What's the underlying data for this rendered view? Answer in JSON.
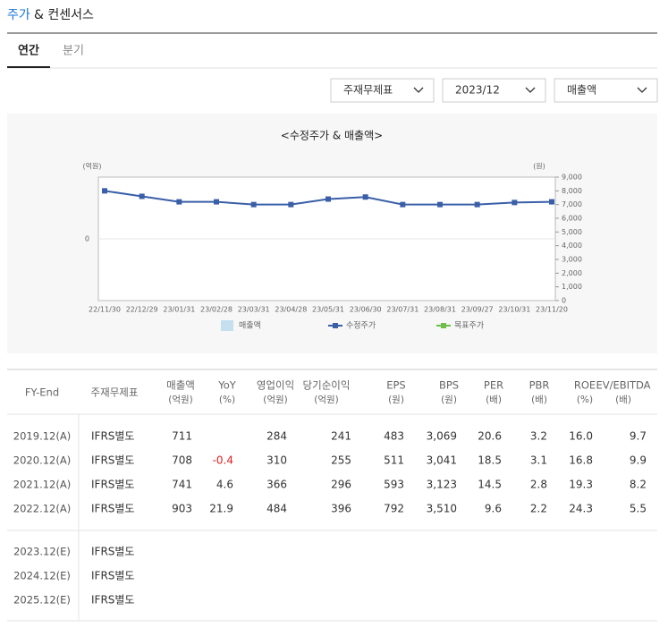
{
  "header": {
    "title_accent": "주가",
    "title_rest": "& 컨센서스"
  },
  "tabs": [
    "연간",
    "분기"
  ],
  "dropdowns": [
    "주재무제표",
    "2023/12",
    "매출액"
  ],
  "chart_data": {
    "type": "line",
    "title": "<수정주가 & 매출액>",
    "y_label": "(억원)",
    "y2_label": "(원)",
    "categories": [
      "22/11/30",
      "22/12/29",
      "23/01/31",
      "23/02/28",
      "23/03/31",
      "23/04/28",
      "23/05/31",
      "23/06/30",
      "23/07/31",
      "23/08/31",
      "23/09/27",
      "23/10/31",
      "23/11/20"
    ],
    "ylim": [
      -1,
      1
    ],
    "yticks": [
      0
    ],
    "y2lim": [
      0,
      9000
    ],
    "y2ticks": [
      0,
      {
        "value": 1000,
        "label": "1,000"
      },
      {
        "value": 2000,
        "label": "2,000"
      },
      {
        "value": 3000,
        "label": "3,000"
      },
      {
        "value": 4000,
        "label": "4,000"
      },
      {
        "value": 5000,
        "label": "5,000"
      },
      {
        "value": 6000,
        "label": "6,000"
      },
      {
        "value": 7000,
        "label": "7,000"
      },
      {
        "value": 8000,
        "label": "8,000"
      },
      {
        "value": 9000,
        "label": "9,000"
      }
    ],
    "series": [
      {
        "name": "매출액",
        "color": "#c5dfee",
        "kind": "bar",
        "values": [
          null,
          null,
          null,
          null,
          null,
          null,
          null,
          null,
          null,
          null,
          null,
          null,
          null
        ]
      },
      {
        "name": "수정주가",
        "color": "#3a5fa8",
        "axis": "y2",
        "values": [
          8000,
          7600,
          7200,
          7200,
          7000,
          7000,
          7400,
          7550,
          7000,
          7000,
          7000,
          7150,
          7200
        ]
      },
      {
        "name": "목표주가",
        "color": "#6cc04a",
        "axis": "y2",
        "values": [
          null,
          null,
          null,
          null,
          null,
          null,
          null,
          null,
          null,
          null,
          null,
          null,
          null
        ]
      }
    ]
  },
  "table": {
    "columns": [
      [
        "FY-End"
      ],
      [
        "주재무제표"
      ],
      [
        "매출액",
        "(억원)"
      ],
      [
        "YoY",
        "(%)"
      ],
      [
        "영업이익",
        "(억원)"
      ],
      [
        "당기순이익",
        "(억원)"
      ],
      [
        "EPS",
        "(원)"
      ],
      [
        "BPS",
        "(원)"
      ],
      [
        "PER",
        "(배)"
      ],
      [
        "PBR",
        "(배)"
      ],
      [
        "ROE",
        "(%)"
      ],
      [
        "EV/EBITDA",
        "(배)"
      ]
    ],
    "actual_rows": [
      [
        "2019.12(A)",
        "IFRS별도",
        "711",
        null,
        "284",
        "241",
        "483",
        "3,069",
        "20.6",
        "3.2",
        "16.0",
        "9.7"
      ],
      [
        "2020.12(A)",
        "IFRS별도",
        "708",
        "-0.4",
        "310",
        "255",
        "511",
        "3,041",
        "18.5",
        "3.1",
        "16.8",
        "9.9"
      ],
      [
        "2021.12(A)",
        "IFRS별도",
        "741",
        "4.6",
        "366",
        "296",
        "593",
        "3,123",
        "14.5",
        "2.8",
        "19.3",
        "8.2"
      ],
      [
        "2022.12(A)",
        "IFRS별도",
        "903",
        "21.9",
        "484",
        "396",
        "792",
        "3,510",
        "9.6",
        "2.2",
        "24.3",
        "5.5"
      ]
    ],
    "estimate_rows": [
      [
        "2023.12(E)",
        "IFRS별도"
      ],
      [
        "2024.12(E)",
        "IFRS별도"
      ],
      [
        "2025.12(E)",
        "IFRS별도"
      ]
    ]
  }
}
